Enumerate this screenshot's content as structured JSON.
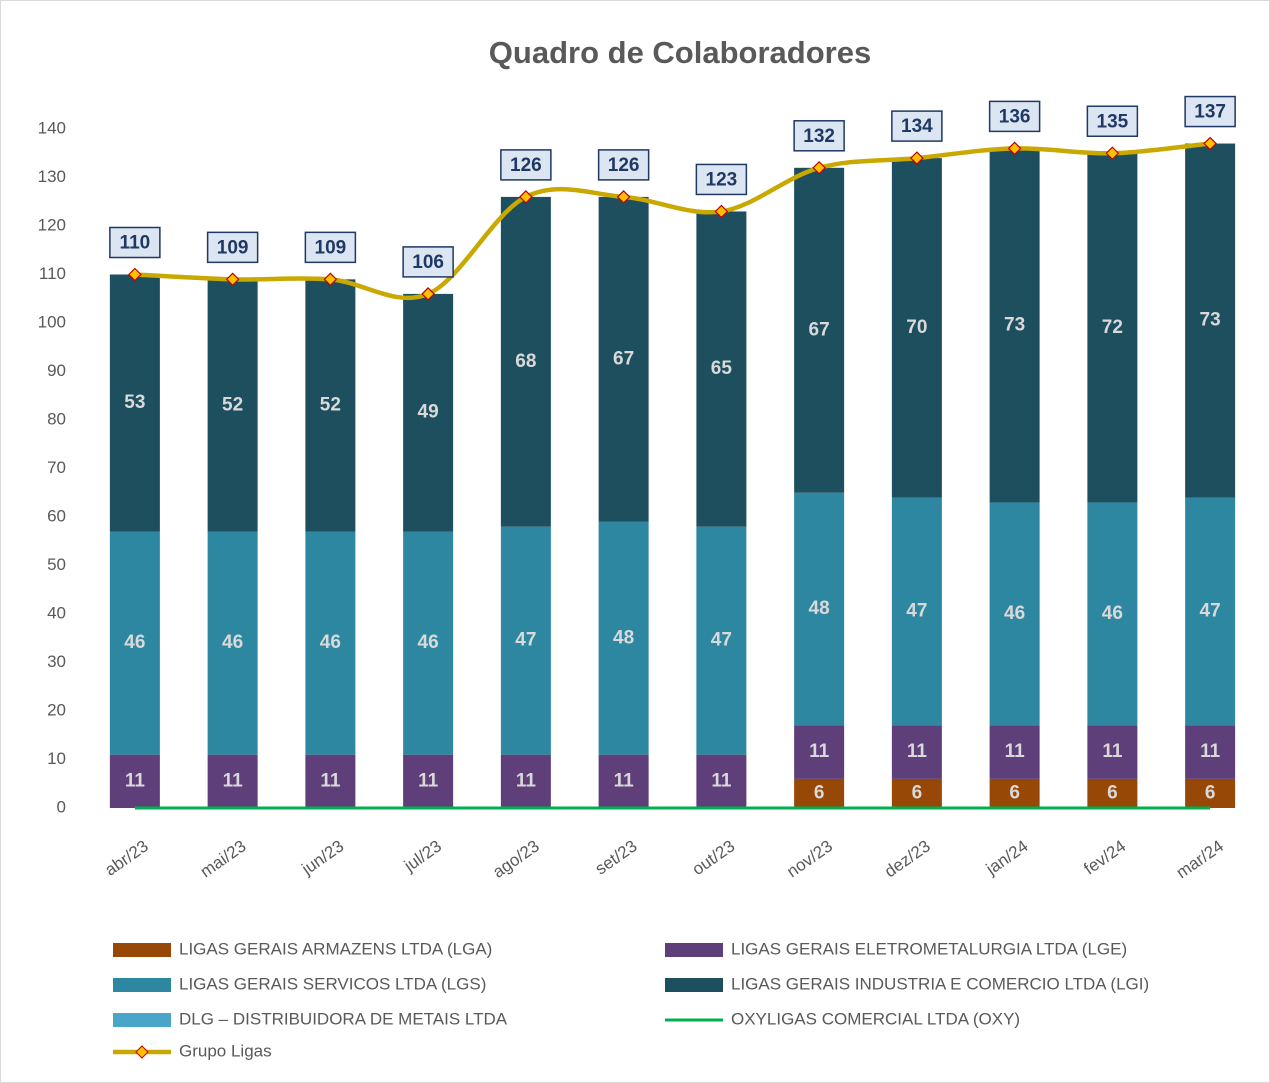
{
  "chart_data": {
    "type": "bar",
    "title": "Quadro de Colaboradores",
    "categories": [
      "abr/23",
      "mai/23",
      "jun/23",
      "jul/23",
      "ago/23",
      "set/23",
      "out/23",
      "nov/23",
      "dez/23",
      "jan/24",
      "fev/24",
      "mar/24"
    ],
    "ylim": [
      0,
      140
    ],
    "yticks": [
      0,
      10,
      20,
      30,
      40,
      50,
      60,
      70,
      80,
      90,
      100,
      110,
      120,
      130,
      140
    ],
    "stacked": true,
    "legend": "bottom",
    "series": [
      {
        "name": "LIGAS GERAIS ARMAZENS LTDA (LGA)",
        "type": "bar",
        "color": "#974806",
        "values": [
          null,
          null,
          null,
          null,
          null,
          null,
          null,
          6,
          6,
          6,
          6,
          6
        ]
      },
      {
        "name": "LIGAS GERAIS ELETROMETALURGIA LTDA (LGE)",
        "type": "bar",
        "color": "#5e3f7a",
        "values": [
          11,
          11,
          11,
          11,
          11,
          11,
          11,
          11,
          11,
          11,
          11,
          11
        ]
      },
      {
        "name": "LIGAS GERAIS SERVICOS LTDA (LGS)",
        "type": "bar",
        "color": "#2e87a1",
        "values": [
          46,
          46,
          46,
          46,
          47,
          48,
          47,
          48,
          47,
          46,
          46,
          47
        ]
      },
      {
        "name": "LIGAS GERAIS INDUSTRIA E COMERCIO LTDA (LGI)",
        "type": "bar",
        "color": "#1e4f5f",
        "values": [
          53,
          52,
          52,
          49,
          68,
          67,
          65,
          67,
          70,
          73,
          72,
          73
        ]
      },
      {
        "name": "DLG – DISTRIBUIDORA DE METAIS LTDA",
        "type": "bar",
        "color": "#4aa6c8",
        "values": [
          null,
          null,
          null,
          null,
          null,
          null,
          null,
          null,
          null,
          null,
          null,
          null
        ]
      },
      {
        "name": "OXYLIGAS COMERCIAL LTDA (OXY)",
        "type": "line",
        "color": "#00b050",
        "values": [
          0,
          0,
          0,
          0,
          0,
          0,
          0,
          0,
          0,
          0,
          0,
          0
        ]
      },
      {
        "name": "Grupo Ligas",
        "type": "line",
        "color": "#c9a800",
        "marker": "diamond",
        "values": [
          110,
          109,
          109,
          106,
          126,
          126,
          123,
          132,
          134,
          136,
          135,
          137
        ]
      }
    ]
  }
}
